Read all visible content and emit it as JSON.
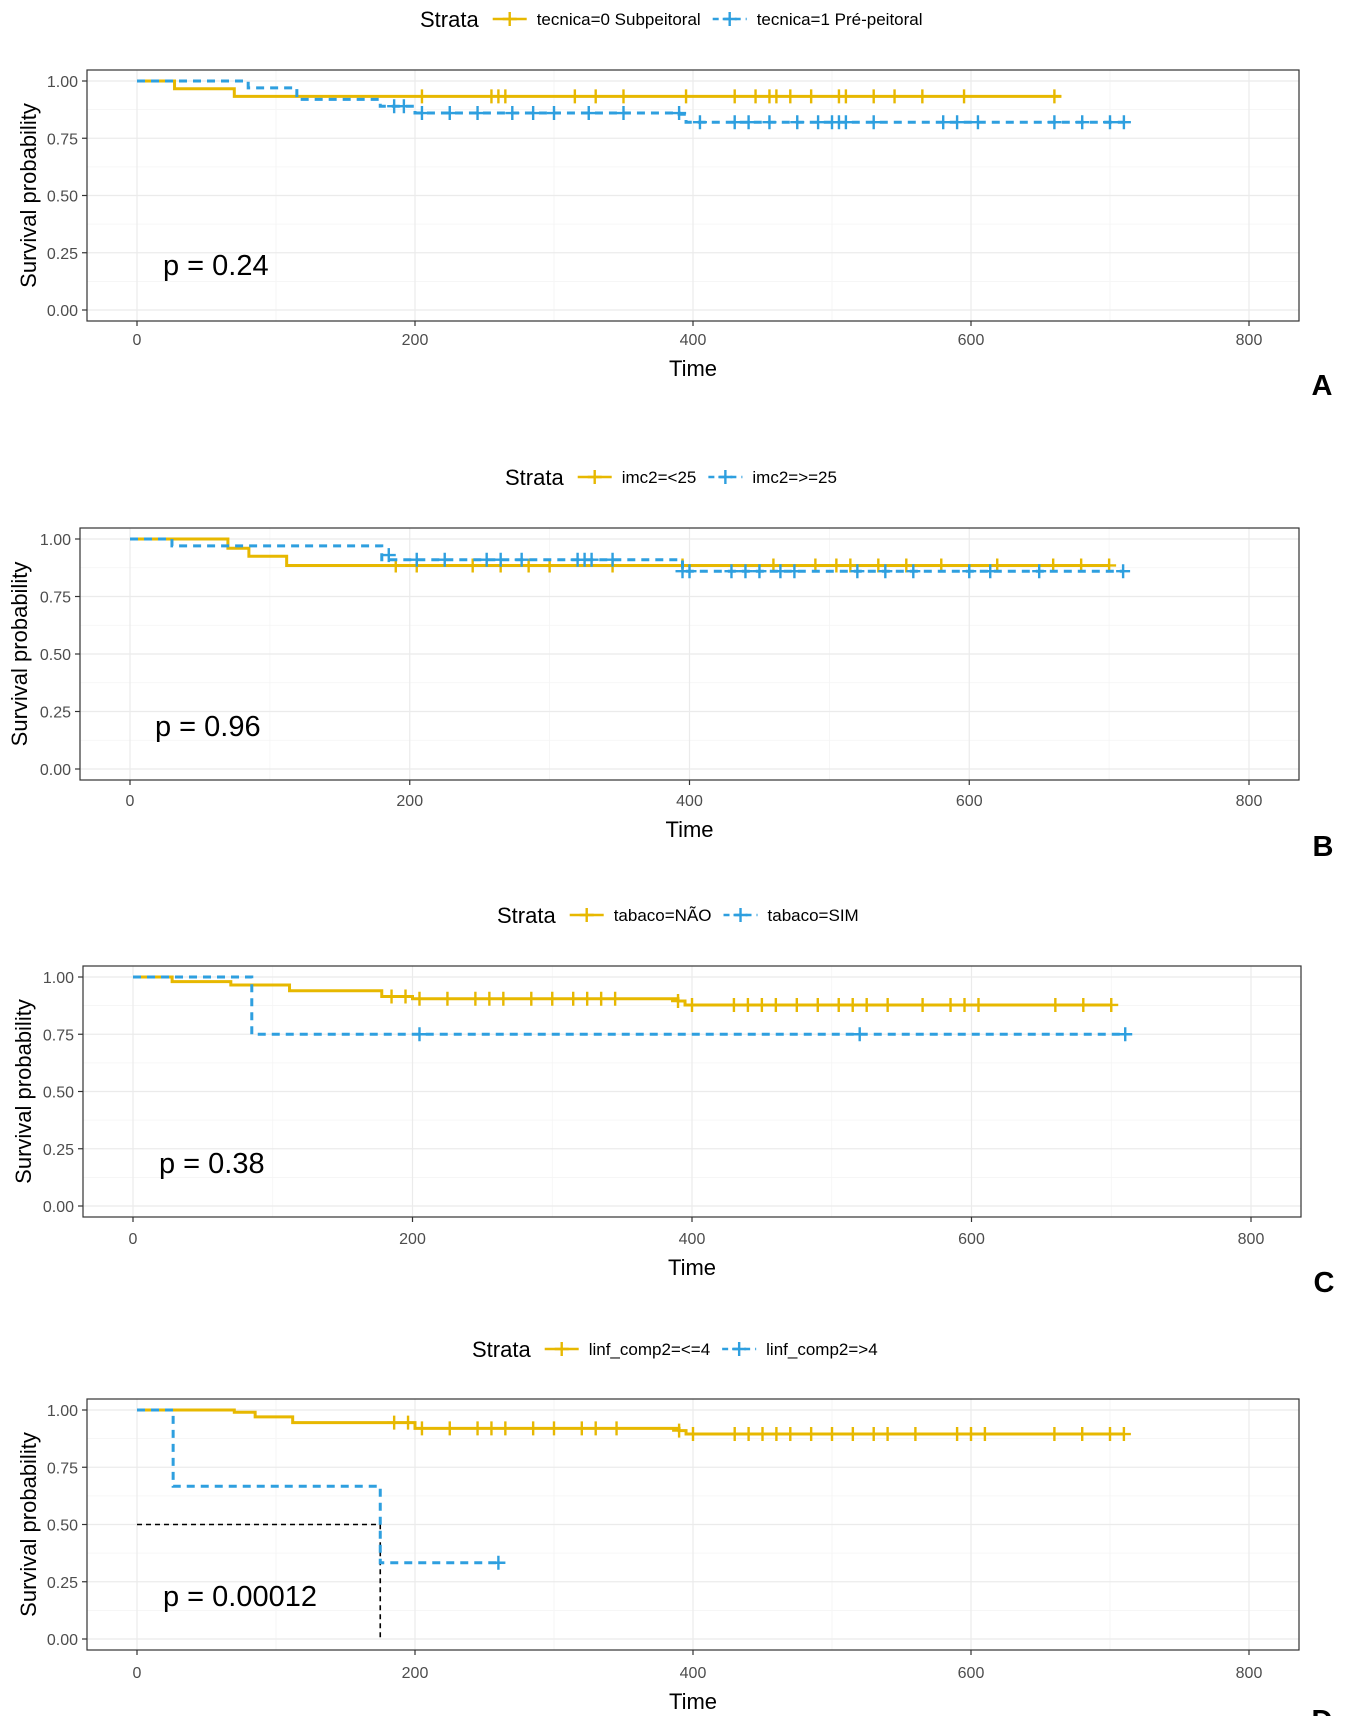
{
  "colors": {
    "group0": "#E7B800",
    "group1": "#2E9FDF",
    "median": "#000000"
  },
  "chart_data": [
    {
      "type": "line",
      "panel_label": "A",
      "xlabel": "Time",
      "ylabel": "Survival probability",
      "xlim": [
        0,
        800
      ],
      "ylim": [
        0,
        1
      ],
      "x_ticks": [
        0,
        200,
        400,
        600,
        800
      ],
      "y_ticks": [
        "0.00",
        "0.25",
        "0.50",
        "0.75",
        "1.00"
      ],
      "legend_title": "Strata",
      "legend_position": "top",
      "p_value": "p = 0.24",
      "series": [
        {
          "name": "tecnica=0 Subpeitoral",
          "style": "solid",
          "steps": [
            [
              0,
              1.0
            ],
            [
              27,
              0.966
            ],
            [
              70,
              0.933
            ],
            [
              665,
              0.933
            ]
          ],
          "censor": [
            [
              205,
              0.933
            ],
            [
              255,
              0.933
            ],
            [
              260,
              0.933
            ],
            [
              265,
              0.933
            ],
            [
              315,
              0.933
            ],
            [
              330,
              0.933
            ],
            [
              350,
              0.933
            ],
            [
              395,
              0.933
            ],
            [
              430,
              0.933
            ],
            [
              445,
              0.933
            ],
            [
              455,
              0.933
            ],
            [
              460,
              0.933
            ],
            [
              470,
              0.933
            ],
            [
              485,
              0.933
            ],
            [
              505,
              0.933
            ],
            [
              510,
              0.933
            ],
            [
              530,
              0.933
            ],
            [
              545,
              0.933
            ],
            [
              565,
              0.933
            ],
            [
              595,
              0.933
            ],
            [
              660,
              0.933
            ]
          ]
        },
        {
          "name": "tecnica=1 Pré-peitoral",
          "style": "dashed",
          "steps": [
            [
              0,
              1.0
            ],
            [
              80,
              0.97
            ],
            [
              115,
              0.92
            ],
            [
              175,
              0.89
            ],
            [
              200,
              0.86
            ],
            [
              390,
              0.855
            ],
            [
              395,
              0.82
            ],
            [
              710,
              0.82
            ]
          ],
          "censor": [
            [
              185,
              0.89
            ],
            [
              192,
              0.89
            ],
            [
              205,
              0.86
            ],
            [
              225,
              0.86
            ],
            [
              245,
              0.86
            ],
            [
              270,
              0.86
            ],
            [
              285,
              0.86
            ],
            [
              300,
              0.86
            ],
            [
              325,
              0.86
            ],
            [
              350,
              0.86
            ],
            [
              390,
              0.86
            ],
            [
              405,
              0.82
            ],
            [
              430,
              0.82
            ],
            [
              440,
              0.82
            ],
            [
              455,
              0.82
            ],
            [
              475,
              0.82
            ],
            [
              490,
              0.82
            ],
            [
              500,
              0.82
            ],
            [
              505,
              0.82
            ],
            [
              510,
              0.82
            ],
            [
              530,
              0.82
            ],
            [
              580,
              0.82
            ],
            [
              590,
              0.82
            ],
            [
              605,
              0.82
            ],
            [
              660,
              0.82
            ],
            [
              680,
              0.82
            ],
            [
              700,
              0.82
            ],
            [
              710,
              0.82
            ]
          ]
        }
      ]
    },
    {
      "type": "line",
      "panel_label": "B",
      "xlabel": "Time",
      "ylabel": "Survival probability",
      "xlim": [
        0,
        800
      ],
      "ylim": [
        0,
        1
      ],
      "x_ticks": [
        0,
        200,
        400,
        600,
        800
      ],
      "y_ticks": [
        "0.00",
        "0.25",
        "0.50",
        "0.75",
        "1.00"
      ],
      "legend_title": "Strata",
      "legend_position": "top",
      "p_value": "p = 0.96",
      "series": [
        {
          "name": "imc2=<25",
          "style": "solid",
          "steps": [
            [
              0,
              1.0
            ],
            [
              70,
              0.96
            ],
            [
              85,
              0.925
            ],
            [
              112,
              0.885
            ],
            [
              700,
              0.885
            ]
          ],
          "censor": [
            [
              190,
              0.885
            ],
            [
              205,
              0.885
            ],
            [
              245,
              0.885
            ],
            [
              265,
              0.885
            ],
            [
              285,
              0.885
            ],
            [
              300,
              0.885
            ],
            [
              345,
              0.885
            ],
            [
              395,
              0.885
            ],
            [
              460,
              0.885
            ],
            [
              490,
              0.885
            ],
            [
              505,
              0.885
            ],
            [
              515,
              0.885
            ],
            [
              535,
              0.885
            ],
            [
              555,
              0.885
            ],
            [
              580,
              0.885
            ],
            [
              620,
              0.885
            ],
            [
              660,
              0.885
            ],
            [
              680,
              0.885
            ],
            [
              700,
              0.885
            ]
          ]
        },
        {
          "name": "imc2=>=25",
          "style": "dashed",
          "steps": [
            [
              0,
              1.0
            ],
            [
              30,
              0.97
            ],
            [
              180,
              0.91
            ],
            [
              395,
              0.86
            ],
            [
              710,
              0.86
            ]
          ],
          "censor": [
            [
              185,
              0.93
            ],
            [
              205,
              0.91
            ],
            [
              225,
              0.91
            ],
            [
              255,
              0.91
            ],
            [
              265,
              0.91
            ],
            [
              280,
              0.91
            ],
            [
              320,
              0.91
            ],
            [
              325,
              0.91
            ],
            [
              330,
              0.91
            ],
            [
              345,
              0.91
            ],
            [
              395,
              0.86
            ],
            [
              400,
              0.86
            ],
            [
              430,
              0.86
            ],
            [
              440,
              0.86
            ],
            [
              450,
              0.86
            ],
            [
              465,
              0.86
            ],
            [
              475,
              0.86
            ],
            [
              520,
              0.86
            ],
            [
              540,
              0.86
            ],
            [
              560,
              0.86
            ],
            [
              600,
              0.86
            ],
            [
              615,
              0.86
            ],
            [
              650,
              0.86
            ],
            [
              710,
              0.86
            ]
          ]
        }
      ]
    },
    {
      "type": "line",
      "panel_label": "C",
      "xlabel": "Time",
      "ylabel": "Survival probability",
      "xlim": [
        0,
        800
      ],
      "ylim": [
        0,
        1
      ],
      "x_ticks": [
        0,
        200,
        400,
        600,
        800
      ],
      "y_ticks": [
        "0.00",
        "0.25",
        "0.50",
        "0.75",
        "1.00"
      ],
      "legend_title": "Strata",
      "legend_position": "top",
      "p_value": "p = 0.38",
      "series": [
        {
          "name": "tabaco=NÃO",
          "style": "solid",
          "steps": [
            [
              0,
              1.0
            ],
            [
              28,
              0.98
            ],
            [
              70,
              0.965
            ],
            [
              112,
              0.94
            ],
            [
              178,
              0.915
            ],
            [
              200,
              0.905
            ],
            [
              390,
              0.895
            ],
            [
              395,
              0.878
            ],
            [
              700,
              0.878
            ]
          ],
          "censor": [
            [
              185,
              0.915
            ],
            [
              195,
              0.915
            ],
            [
              205,
              0.905
            ],
            [
              225,
              0.905
            ],
            [
              245,
              0.905
            ],
            [
              255,
              0.905
            ],
            [
              265,
              0.905
            ],
            [
              285,
              0.905
            ],
            [
              300,
              0.905
            ],
            [
              315,
              0.905
            ],
            [
              325,
              0.905
            ],
            [
              335,
              0.905
            ],
            [
              345,
              0.905
            ],
            [
              390,
              0.895
            ],
            [
              400,
              0.878
            ],
            [
              430,
              0.878
            ],
            [
              440,
              0.878
            ],
            [
              450,
              0.878
            ],
            [
              460,
              0.878
            ],
            [
              475,
              0.878
            ],
            [
              490,
              0.878
            ],
            [
              505,
              0.878
            ],
            [
              515,
              0.878
            ],
            [
              525,
              0.878
            ],
            [
              540,
              0.878
            ],
            [
              565,
              0.878
            ],
            [
              585,
              0.878
            ],
            [
              595,
              0.878
            ],
            [
              605,
              0.878
            ],
            [
              660,
              0.878
            ],
            [
              680,
              0.878
            ],
            [
              700,
              0.878
            ]
          ]
        },
        {
          "name": "tabaco=SIM",
          "style": "dashed",
          "steps": [
            [
              0,
              1.0
            ],
            [
              85,
              0.75
            ],
            [
              710,
              0.75
            ]
          ],
          "censor": [
            [
              205,
              0.75
            ],
            [
              520,
              0.75
            ],
            [
              710,
              0.75
            ]
          ]
        }
      ]
    },
    {
      "type": "line",
      "panel_label": "D",
      "xlabel": "Time",
      "ylabel": "Survival probability",
      "xlim": [
        0,
        800
      ],
      "ylim": [
        0,
        1
      ],
      "x_ticks": [
        0,
        200,
        400,
        600,
        800
      ],
      "y_ticks": [
        "0.00",
        "0.25",
        "0.50",
        "0.75",
        "1.00"
      ],
      "legend_title": "Strata",
      "legend_position": "top",
      "p_value": "p = 0.00012",
      "median_line": {
        "x": 175,
        "y": 0.5
      },
      "series": [
        {
          "name": "linf_comp2=<=4",
          "style": "solid",
          "steps": [
            [
              0,
              1.0
            ],
            [
              70,
              0.99
            ],
            [
              85,
              0.97
            ],
            [
              112,
              0.945
            ],
            [
              200,
              0.92
            ],
            [
              390,
              0.91
            ],
            [
              395,
              0.895
            ],
            [
              710,
              0.895
            ]
          ],
          "censor": [
            [
              185,
              0.945
            ],
            [
              195,
              0.945
            ],
            [
              205,
              0.92
            ],
            [
              225,
              0.92
            ],
            [
              245,
              0.92
            ],
            [
              255,
              0.92
            ],
            [
              265,
              0.92
            ],
            [
              285,
              0.92
            ],
            [
              300,
              0.92
            ],
            [
              320,
              0.92
            ],
            [
              330,
              0.92
            ],
            [
              345,
              0.92
            ],
            [
              390,
              0.91
            ],
            [
              400,
              0.895
            ],
            [
              430,
              0.895
            ],
            [
              440,
              0.895
            ],
            [
              450,
              0.895
            ],
            [
              460,
              0.895
            ],
            [
              470,
              0.895
            ],
            [
              485,
              0.895
            ],
            [
              500,
              0.895
            ],
            [
              515,
              0.895
            ],
            [
              530,
              0.895
            ],
            [
              540,
              0.895
            ],
            [
              560,
              0.895
            ],
            [
              590,
              0.895
            ],
            [
              600,
              0.895
            ],
            [
              610,
              0.895
            ],
            [
              660,
              0.895
            ],
            [
              680,
              0.895
            ],
            [
              700,
              0.895
            ],
            [
              710,
              0.895
            ]
          ]
        },
        {
          "name": "linf_comp2=>4",
          "style": "dashed",
          "steps": [
            [
              0,
              1.0
            ],
            [
              26,
              0.667
            ],
            [
              175,
              0.333
            ],
            [
              260,
              0.333
            ]
          ],
          "censor": [
            [
              260,
              0.333
            ]
          ]
        }
      ]
    }
  ]
}
